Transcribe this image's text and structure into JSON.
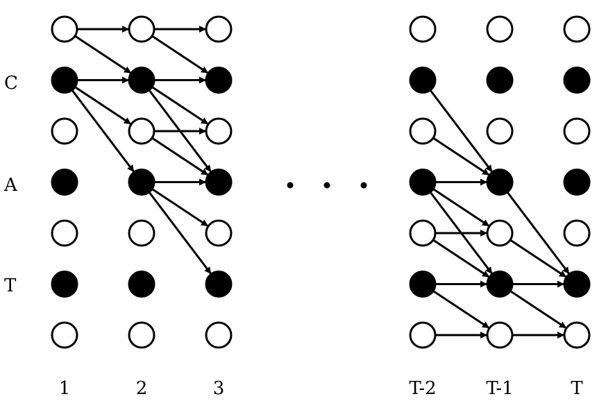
{
  "row_labels": [
    "C",
    "A",
    "T"
  ],
  "column_labels": [
    "1",
    "2",
    "3",
    "T-2",
    "T-1",
    "T"
  ],
  "rows": 7,
  "filled_nodes": {
    "1": [
      1,
      3,
      5
    ],
    "2": [
      1,
      3,
      5
    ],
    "3": [
      1,
      3,
      5
    ],
    "T-2": [
      1,
      3,
      5
    ],
    "T-1": [
      1,
      3,
      5
    ],
    "T": [
      1,
      3,
      5
    ]
  },
  "edges": [
    {
      "from": [
        "1",
        0
      ],
      "to": [
        "2",
        0
      ]
    },
    {
      "from": [
        "1",
        0
      ],
      "to": [
        "2",
        1
      ]
    },
    {
      "from": [
        "1",
        1
      ],
      "to": [
        "2",
        1
      ]
    },
    {
      "from": [
        "1",
        1
      ],
      "to": [
        "2",
        2
      ]
    },
    {
      "from": [
        "1",
        1
      ],
      "to": [
        "2",
        3
      ]
    },
    {
      "from": [
        "2",
        0
      ],
      "to": [
        "3",
        0
      ]
    },
    {
      "from": [
        "2",
        0
      ],
      "to": [
        "3",
        1
      ]
    },
    {
      "from": [
        "2",
        1
      ],
      "to": [
        "3",
        1
      ]
    },
    {
      "from": [
        "2",
        1
      ],
      "to": [
        "3",
        2
      ]
    },
    {
      "from": [
        "2",
        1
      ],
      "to": [
        "3",
        3
      ]
    },
    {
      "from": [
        "2",
        2
      ],
      "to": [
        "3",
        2
      ]
    },
    {
      "from": [
        "2",
        2
      ],
      "to": [
        "3",
        3
      ]
    },
    {
      "from": [
        "2",
        3
      ],
      "to": [
        "3",
        3
      ]
    },
    {
      "from": [
        "2",
        3
      ],
      "to": [
        "3",
        4
      ]
    },
    {
      "from": [
        "2",
        3
      ],
      "to": [
        "3",
        5
      ]
    },
    {
      "from": [
        "T-2",
        1
      ],
      "to": [
        "T-1",
        3
      ]
    },
    {
      "from": [
        "T-2",
        2
      ],
      "to": [
        "T-1",
        3
      ]
    },
    {
      "from": [
        "T-2",
        3
      ],
      "to": [
        "T-1",
        3
      ]
    },
    {
      "from": [
        "T-2",
        3
      ],
      "to": [
        "T-1",
        4
      ]
    },
    {
      "from": [
        "T-2",
        3
      ],
      "to": [
        "T-1",
        5
      ]
    },
    {
      "from": [
        "T-2",
        4
      ],
      "to": [
        "T-1",
        4
      ]
    },
    {
      "from": [
        "T-2",
        4
      ],
      "to": [
        "T-1",
        5
      ]
    },
    {
      "from": [
        "T-2",
        5
      ],
      "to": [
        "T-1",
        5
      ]
    },
    {
      "from": [
        "T-2",
        5
      ],
      "to": [
        "T-1",
        6
      ]
    },
    {
      "from": [
        "T-2",
        6
      ],
      "to": [
        "T-1",
        6
      ]
    },
    {
      "from": [
        "T-1",
        3
      ],
      "to": [
        "T",
        5
      ]
    },
    {
      "from": [
        "T-1",
        4
      ],
      "to": [
        "T",
        5
      ]
    },
    {
      "from": [
        "T-1",
        5
      ],
      "to": [
        "T",
        5
      ]
    },
    {
      "from": [
        "T-1",
        5
      ],
      "to": [
        "T",
        6
      ]
    },
    {
      "from": [
        "T-1",
        6
      ],
      "to": [
        "T",
        6
      ]
    }
  ],
  "ellipsis_count": 3
}
